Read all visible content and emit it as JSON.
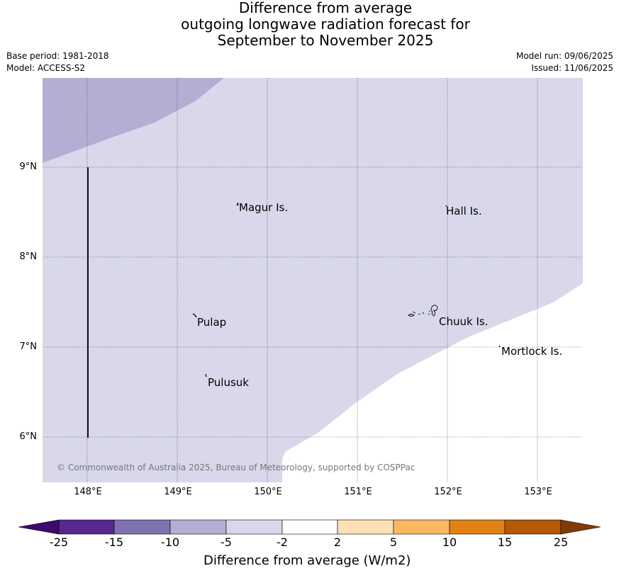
{
  "title": {
    "line1": "Difference from average",
    "line2": "outgoing longwave radiation forecast for",
    "line3": "September to November 2025"
  },
  "meta": {
    "base_period": "Base period: 1981-2018",
    "model": "Model: ACCESS-S2",
    "model_run": "Model run: 09/06/2025",
    "issued": "Issued: 11/06/2025"
  },
  "map": {
    "lon_range": [
      147.5,
      153.5
    ],
    "lat_range": [
      5.5,
      10.0
    ],
    "lat_ticks": [
      "9°N",
      "8°N",
      "7°N",
      "6°N"
    ],
    "lon_ticks": [
      "148°E",
      "149°E",
      "150°E",
      "151°E",
      "152°E",
      "153°E"
    ],
    "places": [
      {
        "name": "Magur Is.",
        "key": "magur"
      },
      {
        "name": "Hall Is.",
        "key": "hall"
      },
      {
        "name": "Pulap",
        "key": "pulap"
      },
      {
        "name": "Chuuk Is.",
        "key": "chuuk"
      },
      {
        "name": "Mortlock Is.",
        "key": "mortlock"
      },
      {
        "name": "Pulusuk",
        "key": "pulusuk"
      }
    ],
    "copyright": "© Commonwealth of Australia 2025, Bureau of Meteorology, supported by COSPPac",
    "colors": {
      "band_minus10_minus5": "#b3aed3",
      "band_minus5_minus2": "#d8d8ea",
      "band_minus2_2": "#ffffff"
    }
  },
  "colorbar": {
    "title": "Difference from average (W/m2)",
    "ticks": [
      "-25",
      "-15",
      "-10",
      "-5",
      "-2",
      "2",
      "5",
      "10",
      "15",
      "25"
    ],
    "colors": [
      "#3f0a6b",
      "#57288e",
      "#7e73b0",
      "#b3aed3",
      "#d8d8ea",
      "#ffffff",
      "#fee0b5",
      "#fdb863",
      "#e08214",
      "#b35806",
      "#7f3b08"
    ]
  }
}
